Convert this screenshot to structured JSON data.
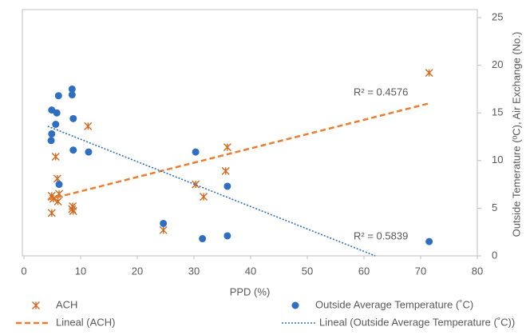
{
  "chart_data": {
    "type": "scatter",
    "xlabel": "PPD (%)",
    "ylabel": "Outside Temerature (ºC), Air Exchange (No.)",
    "xlim": [
      0,
      80
    ],
    "xticks": [
      0,
      10,
      20,
      30,
      40,
      50,
      60,
      70,
      80
    ],
    "ylim": [
      0,
      25
    ],
    "yticks": [
      0,
      5,
      10,
      15,
      20,
      25
    ],
    "y_axis_side": "right",
    "annotations": [
      "R² = 0.4576",
      "R² = 0.5839"
    ],
    "series": [
      {
        "name": "ACH",
        "color": "#D2691E",
        "marker": "x",
        "x": [
          71.5,
          35.9,
          35.6,
          11.3,
          5.6,
          5.9,
          6.2,
          5.2,
          4.9,
          4.9,
          8.6,
          8.5,
          8.7,
          6.0,
          30.3,
          31.7,
          24.6
        ],
        "values": [
          19.2,
          11.4,
          8.9,
          13.6,
          10.4,
          8.1,
          6.5,
          6.0,
          6.3,
          4.5,
          5.2,
          4.9,
          4.7,
          5.7,
          7.5,
          6.2,
          2.7
        ]
      },
      {
        "name": "Outside Average Temperature (˚C)",
        "color": "#2E6FC4",
        "marker": "circle",
        "x": [
          71.5,
          35.9,
          35.9,
          30.3,
          24.6,
          31.5,
          11.4,
          8.7,
          8.7,
          8.5,
          8.5,
          6.1,
          4.9,
          5.8,
          5.6,
          4.9,
          4.8,
          6.2
        ],
        "values": [
          1.5,
          7.3,
          2.1,
          10.9,
          3.4,
          1.8,
          10.9,
          11.1,
          14.4,
          17.5,
          16.9,
          16.8,
          15.3,
          15.0,
          13.8,
          12.8,
          12.1,
          7.5
        ]
      },
      {
        "name": "Lineal (ACH)",
        "color": "#ED7D31",
        "marker": "dashed-line",
        "x": [
          4.2,
          71.5
        ],
        "values": [
          5.9,
          16.0
        ]
      },
      {
        "name": "Lineal (Outside Average Temperature (˚C))",
        "color": "#2E6FC4",
        "marker": "dotted-line",
        "x": [
          4.2,
          62
        ],
        "values": [
          13.6,
          0
        ]
      }
    ]
  }
}
